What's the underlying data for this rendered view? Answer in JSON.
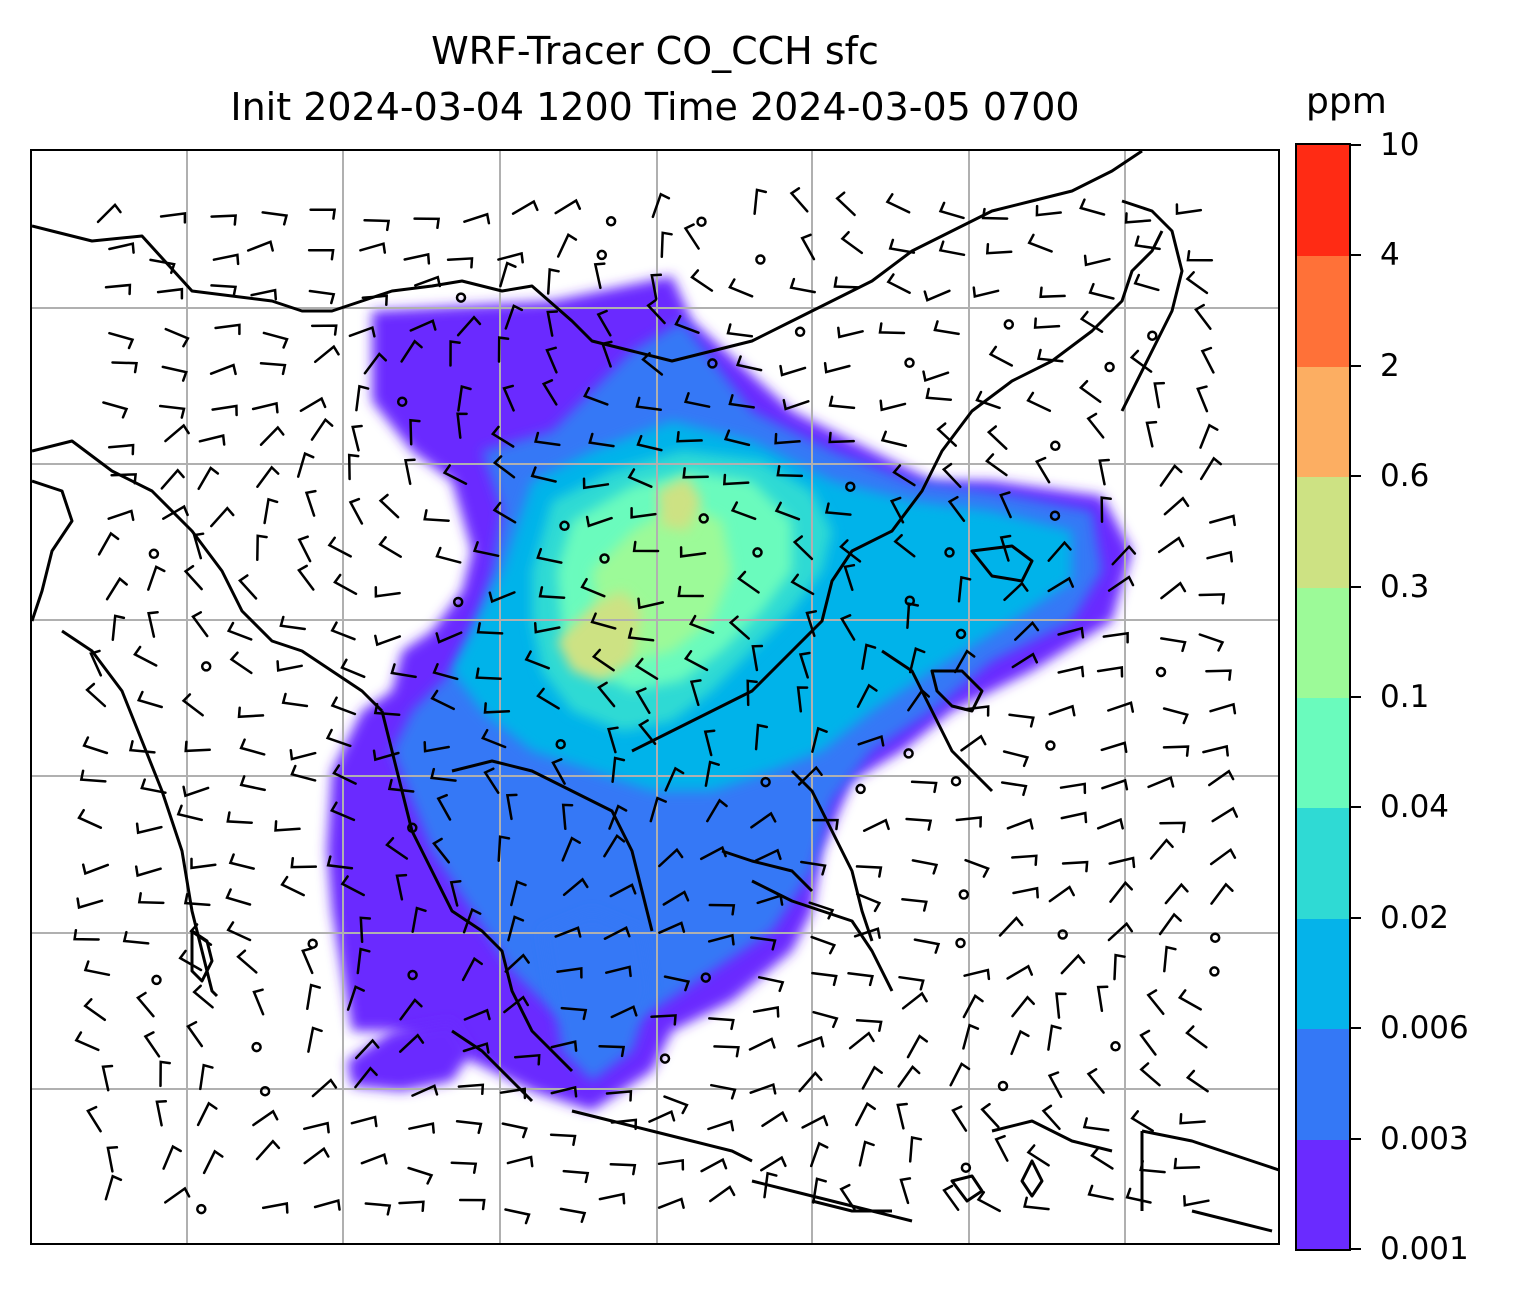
{
  "title": {
    "line1": "WRF-Tracer CO_CCH sfc",
    "line2": "Init 2024-03-04 1200 Time 2024-03-05 0700"
  },
  "colorbar": {
    "unit": "ppm",
    "levels": [
      "0.001",
      "0.003",
      "0.006",
      "0.02",
      "0.04",
      "0.1",
      "0.3",
      "0.6",
      "2",
      "4",
      "10"
    ],
    "colors": [
      "#6a2bff",
      "#3478f6",
      "#05b3ea",
      "#2fdad4",
      "#6afbbd",
      "#9cfa98",
      "#cde283",
      "#fcae62",
      "#ff7138",
      "#ff2b14"
    ]
  },
  "map": {
    "gridlines": true,
    "grid_color": "#b0b0b0",
    "coastline_color": "#000000",
    "overlay": "wind-barbs"
  }
}
